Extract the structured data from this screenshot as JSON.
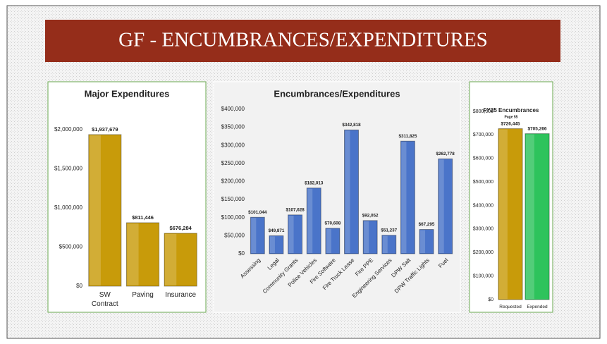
{
  "title": "GF - ENCUMBRANCES/EXPENDITURES",
  "chart_data": [
    {
      "type": "bar",
      "title": "Major Expenditures",
      "categories": [
        "SW Contract",
        "Paving",
        "Insurance"
      ],
      "values": [
        1937679,
        811446,
        676284
      ],
      "value_labels": [
        "$1,937,679",
        "$811,446",
        "$676,284"
      ],
      "color": "#c89b0a",
      "ylim": [
        0,
        2000000
      ],
      "yticks": [
        {
          "value": 0,
          "label": "$0"
        },
        {
          "value": 500000,
          "label": "$500,000"
        },
        {
          "value": 1000000,
          "label": "$1,000,000"
        },
        {
          "value": 1500000,
          "label": "$1,500,000"
        },
        {
          "value": 2000000,
          "label": "$2,000,000"
        }
      ]
    },
    {
      "type": "bar",
      "title": "Encumbrances/Expenditures",
      "categories": [
        "Assessing",
        "Legal",
        "Community Grants",
        "Police Vehicles",
        "Fire Software",
        "Fire Truck Lease",
        "Fire PPE",
        "Engineering Services",
        "DPW Salt",
        "DPW Traffic Lights",
        "Fuel"
      ],
      "values": [
        101044,
        49871,
        107628,
        182013,
        70608,
        342818,
        92052,
        51237,
        311825,
        67295,
        262778
      ],
      "value_labels": [
        "$101,044",
        "$49,871",
        "$107,628",
        "$182,013",
        "$70,608",
        "$342,818",
        "$92,052",
        "$51,237",
        "$311,825",
        "$67,295",
        "$262,778"
      ],
      "color": "#4a74c9",
      "ylim": [
        0,
        400000
      ],
      "yticks": [
        {
          "value": 0,
          "label": "$0"
        },
        {
          "value": 50000,
          "label": "$50,000"
        },
        {
          "value": 100000,
          "label": "$100,000"
        },
        {
          "value": 150000,
          "label": "$150,000"
        },
        {
          "value": 200000,
          "label": "$200,000"
        },
        {
          "value": 250000,
          "label": "$250,000"
        },
        {
          "value": 300000,
          "label": "$300,000"
        },
        {
          "value": 350000,
          "label": "$350,000"
        },
        {
          "value": 400000,
          "label": "$400,000"
        }
      ]
    },
    {
      "type": "bar",
      "title": "FY25 Encumbrances",
      "subtitle": "Page 55",
      "categories": [
        "Requested",
        "Expended"
      ],
      "values": [
        726445,
        705266
      ],
      "value_labels": [
        "$726,445",
        "$705,266"
      ],
      "colors": [
        "#c89b0a",
        "#2ec35c"
      ],
      "ylim": [
        0,
        800000
      ],
      "yticks": [
        {
          "value": 0,
          "label": "$0"
        },
        {
          "value": 100000,
          "label": "$100,000"
        },
        {
          "value": 200000,
          "label": "$200,000"
        },
        {
          "value": 300000,
          "label": "$300,000"
        },
        {
          "value": 400000,
          "label": "$400,000"
        },
        {
          "value": 500000,
          "label": "$500,000"
        },
        {
          "value": 600000,
          "label": "$600,000"
        },
        {
          "value": 700000,
          "label": "$700,000"
        },
        {
          "value": 800000,
          "label": "$800,000"
        }
      ]
    }
  ]
}
